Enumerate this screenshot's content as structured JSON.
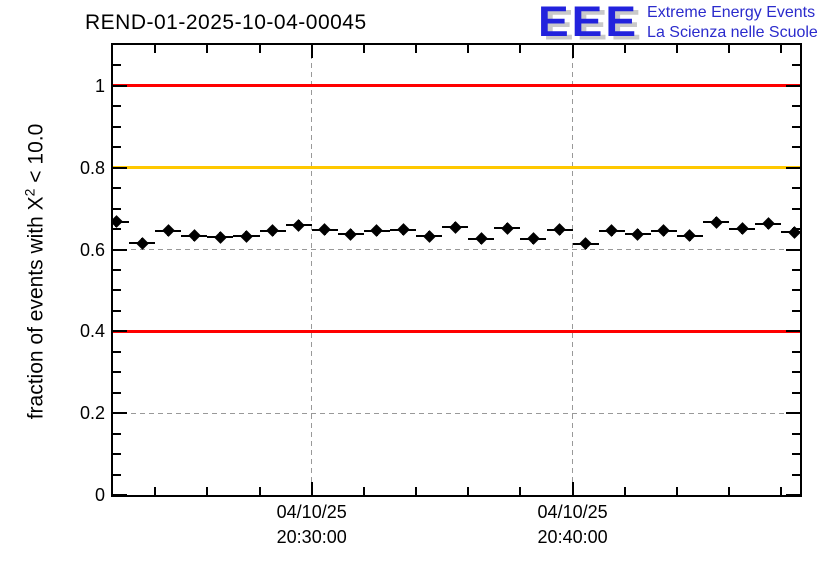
{
  "header": {
    "title": "REND-01-2025-10-04-00045",
    "logo": {
      "letters": "EEE",
      "line1": "Extreme Energy Events",
      "line2": "La Scienza nelle Scuole",
      "letters_color": "#2222dd",
      "shadow_color": "#c9c9c9",
      "text_color": "#2b2bcc"
    }
  },
  "chart_data": {
    "type": "scatter",
    "title": "REND-01-2025-10-04-00045",
    "ylabel_prefix": "fraction of events with X",
    "ylabel_sup": "2",
    "ylabel_suffix": " < 10.0",
    "xlabel": "",
    "ylim": [
      0,
      1.1
    ],
    "x_date": "04/10/25",
    "x_min_time": "20:22:23",
    "x_max_time": "20:48:43",
    "grid": {
      "color": "#999999",
      "h_values": [
        0.2,
        0.4,
        0.6,
        0.8,
        1.0
      ],
      "v_times": [
        "20:30:00",
        "20:40:00"
      ]
    },
    "reference_lines": [
      {
        "y": 1.0,
        "color": "#ff0000"
      },
      {
        "y": 0.8,
        "color": "#ffc800"
      },
      {
        "y": 0.4,
        "color": "#ff0000"
      }
    ],
    "y_major_ticks": [
      {
        "v": 0,
        "label": "0"
      },
      {
        "v": 0.2,
        "label": "0.2"
      },
      {
        "v": 0.4,
        "label": "0.4"
      },
      {
        "v": 0.6,
        "label": "0.6"
      },
      {
        "v": 0.8,
        "label": "0.8"
      },
      {
        "v": 1.0,
        "label": "1"
      }
    ],
    "y_minor_step": 0.05,
    "x_major_ticks": [
      {
        "time": "20:30:00",
        "label_date": "04/10/25",
        "label_time": "20:30:00"
      },
      {
        "time": "20:40:00",
        "label_date": "04/10/25",
        "label_time": "20:40:00"
      }
    ],
    "x_minor_times": [
      "20:24:00",
      "20:26:00",
      "20:28:00",
      "20:32:00",
      "20:34:00",
      "20:36:00",
      "20:38:00",
      "20:42:00",
      "20:44:00",
      "20:46:00",
      "20:48:00"
    ],
    "legend_position": "none",
    "series": [
      {
        "name": "fraction of events with chi2 < 10",
        "marker": "diamond",
        "color": "#000000",
        "x_bin_half_width_seconds": 30,
        "points": [
          {
            "t": "20:22:30",
            "v": 0.668
          },
          {
            "t": "20:23:30",
            "v": 0.616
          },
          {
            "t": "20:24:30",
            "v": 0.646
          },
          {
            "t": "20:25:30",
            "v": 0.634
          },
          {
            "t": "20:26:30",
            "v": 0.63
          },
          {
            "t": "20:27:30",
            "v": 0.632
          },
          {
            "t": "20:28:30",
            "v": 0.646
          },
          {
            "t": "20:29:30",
            "v": 0.659
          },
          {
            "t": "20:30:30",
            "v": 0.649
          },
          {
            "t": "20:31:30",
            "v": 0.638
          },
          {
            "t": "20:32:30",
            "v": 0.646
          },
          {
            "t": "20:33:30",
            "v": 0.649
          },
          {
            "t": "20:34:30",
            "v": 0.632
          },
          {
            "t": "20:35:30",
            "v": 0.654
          },
          {
            "t": "20:36:30",
            "v": 0.626
          },
          {
            "t": "20:37:30",
            "v": 0.652
          },
          {
            "t": "20:38:30",
            "v": 0.626
          },
          {
            "t": "20:39:30",
            "v": 0.649
          },
          {
            "t": "20:40:30",
            "v": 0.614
          },
          {
            "t": "20:41:30",
            "v": 0.646
          },
          {
            "t": "20:42:30",
            "v": 0.638
          },
          {
            "t": "20:43:30",
            "v": 0.646
          },
          {
            "t": "20:44:30",
            "v": 0.634
          },
          {
            "t": "20:45:30",
            "v": 0.667
          },
          {
            "t": "20:46:30",
            "v": 0.651
          },
          {
            "t": "20:47:30",
            "v": 0.663
          },
          {
            "t": "20:48:30",
            "v": 0.642
          }
        ]
      }
    ]
  }
}
